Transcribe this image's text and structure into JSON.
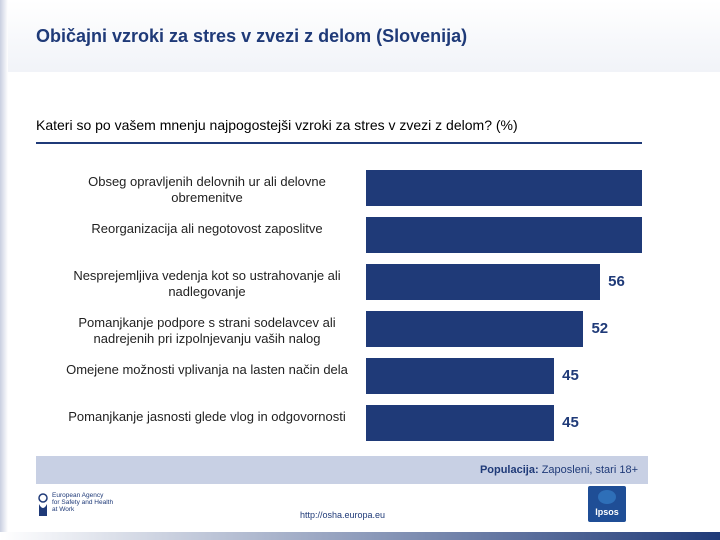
{
  "page": {
    "title": "Običajni vzroki za stres v zvezi z delom (Slovenija)",
    "footer_url": "http://osha.europa.eu"
  },
  "logos": {
    "eu_agency": "European Agency for Safety and Health at Work",
    "eu_agency_lines": [
      "European Agency",
      "for Safety and Health",
      "at Work"
    ],
    "ipsos": "Ipsos"
  },
  "population": {
    "label": "Populacija:",
    "value": "Zaposleni, stari 18+"
  },
  "chart_data": {
    "type": "bar",
    "title": "Kateri so po vašem mnenju najpogostejši vzroki za stres v zvezi z delom? (%)",
    "orientation": "horizontal",
    "categories": [
      "Obseg opravljenih delovnih ur ali delovne obremenitve",
      "Reorganizacija ali negotovost zaposlitve",
      "Nesprejemljiva vedenja kot so ustrahovanje ali nadlegovanje",
      "Pomanjkanje podpore s strani sodelavcev ali nadrejenih pri izpolnjevanju vaših nalog",
      "Omejene možnosti vplivanja na lasten način dela",
      "Pomanjkanje jasnosti glede vlog in odgovornosti"
    ],
    "values": [
      66,
      66,
      56,
      52,
      45,
      45
    ],
    "value_labels": [
      "",
      "",
      "56",
      "52",
      "45",
      "45"
    ],
    "xlim": [
      0,
      66
    ],
    "bar_color": "#1f3a78",
    "grid": false
  }
}
